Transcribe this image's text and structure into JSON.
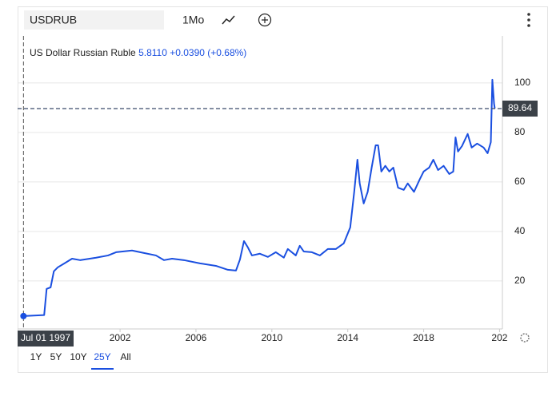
{
  "toolbar": {
    "symbol": "USDRUB",
    "interval": "1Mo"
  },
  "legend": {
    "name": "US Dollar Russian Ruble",
    "value": "5.8110",
    "change": "+0.0390 (+0.68%)"
  },
  "ranges": [
    "1Y",
    "5Y",
    "10Y",
    "25Y",
    "All"
  ],
  "active_range": 3,
  "chart_data": {
    "type": "line",
    "x": [
      1996.91,
      1998.0,
      1998.13,
      1998.34,
      1998.51,
      1998.72,
      1999.05,
      1999.47,
      1999.89,
      2000.74,
      2001.37,
      2001.79,
      2002.63,
      2003.26,
      2003.89,
      2004.32,
      2004.74,
      2005.37,
      2006.21,
      2007.05,
      2007.68,
      2008.11,
      2008.32,
      2008.53,
      2008.74,
      2008.95,
      2009.37,
      2009.79,
      2010.21,
      2010.63,
      2010.84,
      2011.26,
      2011.47,
      2011.68,
      2012.11,
      2012.53,
      2012.95,
      2013.37,
      2013.79,
      2014.13,
      2014.34,
      2014.51,
      2014.63,
      2014.84,
      2015.05,
      2015.26,
      2015.47,
      2015.6,
      2015.77,
      2015.98,
      2016.19,
      2016.4,
      2016.65,
      2016.95,
      2017.16,
      2017.49,
      2017.79,
      2018.0,
      2018.29,
      2018.51,
      2018.76,
      2019.05,
      2019.35,
      2019.56,
      2019.68,
      2019.81,
      2020.02,
      2020.32,
      2020.53,
      2020.82,
      2021.16,
      2021.37,
      2021.54,
      2021.62,
      2021.71,
      2021.75
    ],
    "series": [
      {
        "name": "US Dollar Russian Ruble",
        "color": "#1a4fe0",
        "values": [
          5.8,
          6.2,
          16.8,
          17.4,
          23.9,
          25.5,
          27,
          29,
          28.4,
          29.4,
          30.3,
          31.6,
          32.3,
          31.3,
          30.3,
          28.4,
          29,
          28.4,
          27.1,
          26.1,
          24.5,
          24.2,
          28.7,
          36.1,
          33.5,
          30.3,
          31,
          29.7,
          31.6,
          29.4,
          32.9,
          30.3,
          34.2,
          31.9,
          31.6,
          30.3,
          32.9,
          32.9,
          35.2,
          41.6,
          56,
          69,
          59.4,
          51.3,
          56,
          65.8,
          74.8,
          74.8,
          64.2,
          66.5,
          64.2,
          65.8,
          57.7,
          56.8,
          59.4,
          56,
          61,
          64.2,
          65.8,
          69,
          64.8,
          66.5,
          63.2,
          64.2,
          78,
          72.3,
          74.5,
          79.4,
          73.9,
          75.5,
          73.9,
          71.6,
          76.1,
          101.3,
          91.6,
          89.7
        ]
      }
    ],
    "xlim": [
      1996.6,
      2022.15
    ],
    "xticks": [
      2002,
      2006,
      2010,
      2014,
      2018,
      {
        "value": 2022,
        "label": "202"
      }
    ],
    "ylim": [
      0.6,
      119
    ],
    "yticks": [
      20,
      40,
      60,
      80,
      100
    ],
    "reference_line": {
      "value": 89.64
    },
    "crosshair_label": "Jul 01 1997"
  }
}
